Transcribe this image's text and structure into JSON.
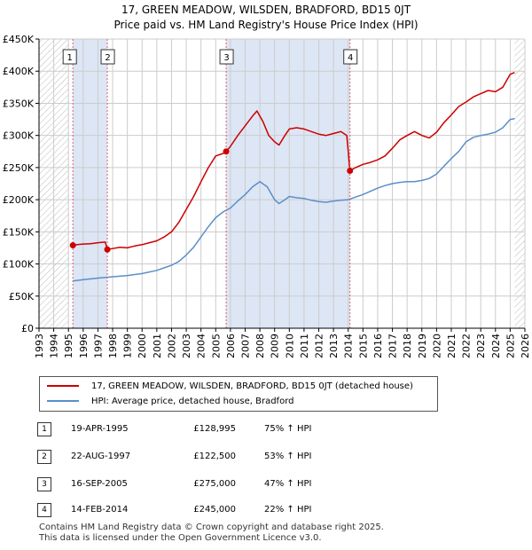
{
  "title_line1": "17, GREEN MEADOW, WILSDEN, BRADFORD, BD15 0JT",
  "title_line2": "Price paid vs. HM Land Registry's House Price Index (HPI)",
  "colors": {
    "property": "#cc0000",
    "hpi": "#5b8ec9",
    "sale_band": "#dde6f5",
    "marker_line": "#e06060",
    "grid": "#cccccc"
  },
  "chart_data": {
    "type": "line",
    "xlim": [
      1993,
      2026
    ],
    "ylim": [
      0,
      450000
    ],
    "yticks": [
      0,
      50000,
      100000,
      150000,
      200000,
      250000,
      300000,
      350000,
      400000,
      450000
    ],
    "ytick_labels": [
      "£0",
      "£50K",
      "£100K",
      "£150K",
      "£200K",
      "£250K",
      "£300K",
      "£350K",
      "£400K",
      "£450K"
    ],
    "xticks": [
      1993,
      1994,
      1995,
      1996,
      1997,
      1998,
      1999,
      2000,
      2001,
      2002,
      2003,
      2004,
      2005,
      2006,
      2007,
      2008,
      2009,
      2010,
      2011,
      2012,
      2013,
      2014,
      2015,
      2016,
      2017,
      2018,
      2019,
      2020,
      2021,
      2022,
      2023,
      2024,
      2025,
      2026
    ],
    "xtick_labels": [
      "1993",
      "1994",
      "1995",
      "1996",
      "1997",
      "1998",
      "1999",
      "2000",
      "2001",
      "2002",
      "2003",
      "2004",
      "2005",
      "2006",
      "2007",
      "2008",
      "2009",
      "2010",
      "2011",
      "2012",
      "2013",
      "2014",
      "2015",
      "2016",
      "2017",
      "2018",
      "2019",
      "2020",
      "2021",
      "2022",
      "2023",
      "2024",
      "2025",
      "2026"
    ],
    "hatch_regions": [
      [
        1993,
        1995.0
      ],
      [
        2025.3,
        2026
      ]
    ],
    "series": [
      {
        "name": "17, GREEN MEADOW, WILSDEN, BRADFORD, BD15 0JT (detached house)",
        "x": [
          1995.3,
          1995.6,
          1996.0,
          1996.5,
          1997.0,
          1997.5,
          1997.64,
          1998.0,
          1998.5,
          1999.0,
          1999.5,
          2000.0,
          2000.5,
          2001.0,
          2001.5,
          2002.0,
          2002.5,
          2003.0,
          2003.5,
          2004.0,
          2004.5,
          2005.0,
          2005.5,
          2005.71,
          2006.0,
          2006.5,
          2007.0,
          2007.5,
          2007.8,
          2008.2,
          2008.6,
          2009.0,
          2009.3,
          2009.7,
          2010.0,
          2010.5,
          2011.0,
          2011.5,
          2012.0,
          2012.5,
          2013.0,
          2013.5,
          2013.9,
          2014.12,
          2014.5,
          2015.0,
          2015.5,
          2016.0,
          2016.5,
          2017.0,
          2017.5,
          2018.0,
          2018.5,
          2019.0,
          2019.5,
          2020.0,
          2020.5,
          2021.0,
          2021.5,
          2022.0,
          2022.5,
          2023.0,
          2023.5,
          2024.0,
          2024.5,
          2025.0,
          2025.3
        ],
        "y": [
          128995,
          130000,
          131000,
          131500,
          133000,
          134000,
          122500,
          124000,
          126000,
          125000,
          128000,
          130000,
          133000,
          136000,
          142000,
          150000,
          165000,
          185000,
          205000,
          228000,
          250000,
          268000,
          272000,
          275000,
          283000,
          300000,
          315000,
          330000,
          338000,
          322000,
          300000,
          290000,
          285000,
          300000,
          310000,
          312000,
          310000,
          306000,
          302000,
          300000,
          303000,
          306000,
          300000,
          245000,
          250000,
          255000,
          258000,
          262000,
          268000,
          280000,
          293000,
          300000,
          306000,
          300000,
          296000,
          305000,
          320000,
          332000,
          345000,
          352000,
          360000,
          365000,
          370000,
          368000,
          375000,
          395000,
          398000
        ]
      },
      {
        "name": "HPI: Average price, detached house, Bradford",
        "x": [
          1995.3,
          1996.0,
          1997.0,
          1998.0,
          1999.0,
          2000.0,
          2001.0,
          2002.0,
          2002.5,
          2003.0,
          2003.5,
          2004.0,
          2004.5,
          2005.0,
          2005.5,
          2006.0,
          2006.5,
          2007.0,
          2007.5,
          2008.0,
          2008.5,
          2009.0,
          2009.3,
          2009.7,
          2010.0,
          2010.5,
          2011.0,
          2011.5,
          2012.0,
          2012.5,
          2013.0,
          2013.5,
          2014.0,
          2014.5,
          2015.0,
          2015.5,
          2016.0,
          2016.5,
          2017.0,
          2017.5,
          2018.0,
          2018.5,
          2019.0,
          2019.5,
          2020.0,
          2020.5,
          2021.0,
          2021.5,
          2022.0,
          2022.5,
          2023.0,
          2023.5,
          2024.0,
          2024.5,
          2025.0,
          2025.3
        ],
        "y": [
          73500,
          75500,
          78000,
          80000,
          82000,
          85000,
          90000,
          98000,
          104000,
          114000,
          126000,
          142000,
          158000,
          172000,
          181000,
          187000,
          198000,
          208000,
          220000,
          228000,
          220000,
          200000,
          194000,
          200000,
          205000,
          203000,
          202000,
          199000,
          197000,
          196000,
          198000,
          199000,
          200000,
          204000,
          208000,
          213000,
          218000,
          222000,
          225000,
          227000,
          228000,
          228000,
          230000,
          233000,
          240000,
          252000,
          264000,
          275000,
          290000,
          297000,
          300000,
          302000,
          305000,
          312000,
          325000,
          326000
        ]
      }
    ],
    "markers": [
      {
        "label": "1",
        "x": 1995.3,
        "y": 128995
      },
      {
        "label": "2",
        "x": 1997.64,
        "y": 122500
      },
      {
        "label": "3",
        "x": 2005.71,
        "y": 275000
      },
      {
        "label": "4",
        "x": 2014.12,
        "y": 245000
      }
    ],
    "bands": [
      [
        1995.3,
        1997.64
      ],
      [
        2005.71,
        2014.12
      ]
    ]
  },
  "legend": {
    "property": "17, GREEN MEADOW, WILSDEN, BRADFORD, BD15 0JT (detached house)",
    "hpi": "HPI: Average price, detached house, Bradford"
  },
  "sales": [
    {
      "num": "1",
      "date": "19-APR-1995",
      "price": "£128,995",
      "hpi": "75% ↑ HPI"
    },
    {
      "num": "2",
      "date": "22-AUG-1997",
      "price": "£122,500",
      "hpi": "53% ↑ HPI"
    },
    {
      "num": "3",
      "date": "16-SEP-2005",
      "price": "£275,000",
      "hpi": "47% ↑ HPI"
    },
    {
      "num": "4",
      "date": "14-FEB-2014",
      "price": "£245,000",
      "hpi": "22% ↑ HPI"
    }
  ],
  "footer_line1": "Contains HM Land Registry data © Crown copyright and database right 2025.",
  "footer_line2": "This data is licensed under the Open Government Licence v3.0."
}
